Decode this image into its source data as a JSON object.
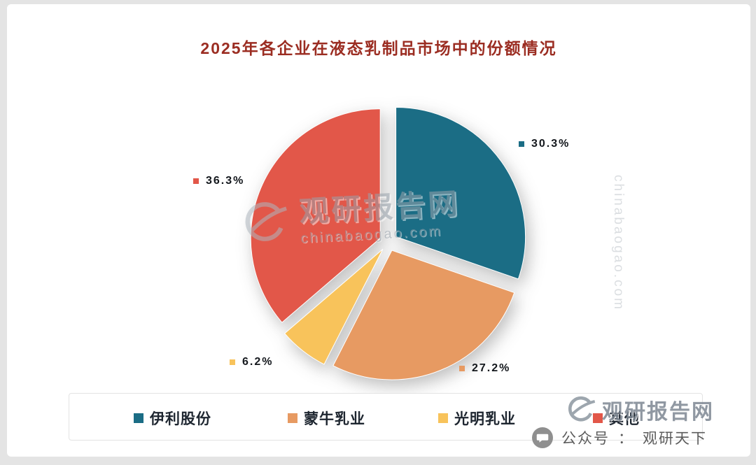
{
  "title": "2025年各企业在液态乳制品市场中的份额情况",
  "title_color": "#9b2d22",
  "chart_data": {
    "type": "pie",
    "title": "2025年各企业在液态乳制品市场中的份额情况",
    "categories": [
      "伊利股份",
      "蒙牛乳业",
      "光明乳业",
      "其他"
    ],
    "values": [
      30.3,
      27.2,
      6.2,
      36.3
    ],
    "unit": "%",
    "start_angle": "12-o'clock",
    "direction": "clockwise",
    "legend_position": "bottom",
    "series": [
      {
        "name": "伊利股份",
        "value": 30.3,
        "label": "30.3%",
        "color": "#1b6d85"
      },
      {
        "name": "蒙牛乳业",
        "value": 27.2,
        "label": "27.2%",
        "color": "#e79a62"
      },
      {
        "name": "光明乳业",
        "value": 6.2,
        "label": "6.2%",
        "color": "#f8c35b"
      },
      {
        "name": "其他",
        "value": 36.3,
        "label": "36.3%",
        "color": "#e25749"
      }
    ]
  },
  "watermark": {
    "center_text": "观研报告网",
    "center_sub": "chinabaogao.com",
    "vertical_text": "chinabaogao.com",
    "corner_text": "观研报告网"
  },
  "footer": {
    "label": "公众号",
    "separator": "：",
    "account": "观研天下"
  }
}
